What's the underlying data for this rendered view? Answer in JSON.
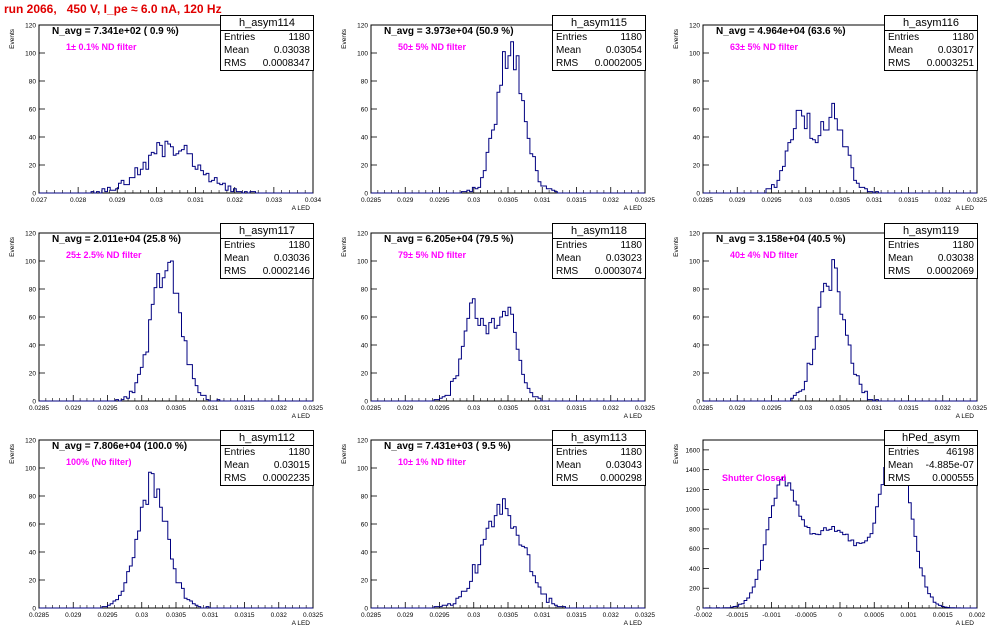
{
  "title": "run 2066,   450 V, I_pe ≈ 6.0 nA, 120 Hz",
  "colors": {
    "title": "#e00000",
    "histogram": "#000080",
    "note": "#ff00ff"
  },
  "chart_data": [
    {
      "type": "histogram",
      "name": "h_asym114",
      "navg": "N_avg = 7.341e+02 ( 0.9 %)",
      "note": "1± 0.1% ND filter",
      "stats": {
        "Entries": "1180",
        "Mean": "0.03038",
        "RMS": "0.0008347"
      },
      "xlabel": "A_{LED}",
      "ylabel": "Events",
      "xlim": [
        0.027,
        0.034
      ],
      "ylim": [
        0,
        120
      ],
      "xticks": [
        "0.027",
        "0.028",
        "0.029",
        "0.03",
        "0.031",
        "0.032",
        "0.033",
        "0.034"
      ],
      "yticks": [
        "0",
        "20",
        "40",
        "60",
        "80",
        "100",
        "120"
      ],
      "mean": 0.03038,
      "rms": 0.0008347,
      "peak": 33,
      "shape": "bimodal-wide"
    },
    {
      "type": "histogram",
      "name": "h_asym115",
      "navg": "N_avg = 3.973e+04 (50.9 %)",
      "note": "50± 5% ND filter",
      "stats": {
        "Entries": "1180",
        "Mean": "0.03054",
        "RMS": "0.0002005"
      },
      "xlabel": "A_{LED}",
      "ylabel": "Events",
      "xlim": [
        0.0285,
        0.0325
      ],
      "ylim": [
        0,
        120
      ],
      "xticks": [
        "0.0285",
        "0.029",
        "0.0295",
        "0.03",
        "0.0305",
        "0.031",
        "0.0315",
        "0.032",
        "0.0325"
      ],
      "yticks": [
        "0",
        "20",
        "40",
        "60",
        "80",
        "100",
        "120"
      ],
      "mean": 0.03054,
      "rms": 0.0002005,
      "peak": 102,
      "shape": "gaussian"
    },
    {
      "type": "histogram",
      "name": "h_asym116",
      "navg": "N_avg = 4.964e+04 (63.6 %)",
      "note": "63± 5% ND filter",
      "stats": {
        "Entries": "1180",
        "Mean": "0.03017",
        "RMS": "0.0003251"
      },
      "xlabel": "A_{LED}",
      "ylabel": "Events",
      "xlim": [
        0.0285,
        0.0325
      ],
      "ylim": [
        0,
        120
      ],
      "xticks": [
        "0.0285",
        "0.029",
        "0.0295",
        "0.03",
        "0.0305",
        "0.031",
        "0.0315",
        "0.032",
        "0.0325"
      ],
      "yticks": [
        "0",
        "20",
        "40",
        "60",
        "80",
        "100",
        "120"
      ],
      "mean": 0.03017,
      "rms": 0.0003251,
      "peak": 55,
      "shape": "bimodal"
    },
    {
      "type": "histogram",
      "name": "h_asym117",
      "navg": "N_avg = 2.011e+04 (25.8 %)",
      "note": "25± 2.5% ND filter",
      "stats": {
        "Entries": "1180",
        "Mean": "0.03036",
        "RMS": "0.0002146"
      },
      "xlabel": "A_{LED}",
      "ylabel": "Events",
      "xlim": [
        0.0285,
        0.0325
      ],
      "ylim": [
        0,
        120
      ],
      "xticks": [
        "0.0285",
        "0.029",
        "0.0295",
        "0.03",
        "0.0305",
        "0.031",
        "0.0315",
        "0.032",
        "0.0325"
      ],
      "yticks": [
        "0",
        "20",
        "40",
        "60",
        "80",
        "100",
        "120"
      ],
      "mean": 0.03036,
      "rms": 0.0002146,
      "peak": 97,
      "shape": "gaussian"
    },
    {
      "type": "histogram",
      "name": "h_asym118",
      "navg": "N_avg = 6.205e+04 (79.5 %)",
      "note": "79± 5% ND filter",
      "stats": {
        "Entries": "1180",
        "Mean": "0.03023",
        "RMS": "0.0003074"
      },
      "xlabel": "A_{LED}",
      "ylabel": "Events",
      "xlim": [
        0.0285,
        0.0325
      ],
      "ylim": [
        0,
        120
      ],
      "xticks": [
        "0.0285",
        "0.029",
        "0.0295",
        "0.03",
        "0.0305",
        "0.031",
        "0.0315",
        "0.032",
        "0.0325"
      ],
      "yticks": [
        "0",
        "20",
        "40",
        "60",
        "80",
        "100",
        "120"
      ],
      "mean": 0.03023,
      "rms": 0.0003074,
      "peak": 66,
      "shape": "bimodal"
    },
    {
      "type": "histogram",
      "name": "h_asym119",
      "navg": "N_avg = 3.158e+04 (40.5 %)",
      "note": "40± 4% ND filter",
      "stats": {
        "Entries": "1180",
        "Mean": "0.03038",
        "RMS": "0.0002069"
      },
      "xlabel": "A_{LED}",
      "ylabel": "Events",
      "xlim": [
        0.0285,
        0.0325
      ],
      "ylim": [
        0,
        120
      ],
      "xticks": [
        "0.0285",
        "0.029",
        "0.0295",
        "0.03",
        "0.0305",
        "0.031",
        "0.0315",
        "0.032",
        "0.0325"
      ],
      "yticks": [
        "0",
        "20",
        "40",
        "60",
        "80",
        "100",
        "120"
      ],
      "mean": 0.03038,
      "rms": 0.0002069,
      "peak": 90,
      "shape": "gaussian"
    },
    {
      "type": "histogram",
      "name": "h_asym112",
      "navg": "N_avg = 7.806e+04 (100.0 %)",
      "note": "100% (No filter)",
      "stats": {
        "Entries": "1180",
        "Mean": "0.03015",
        "RMS": "0.0002235"
      },
      "xlabel": "A_{LED}",
      "ylabel": "Events",
      "xlim": [
        0.0285,
        0.0325
      ],
      "ylim": [
        0,
        120
      ],
      "xticks": [
        "0.0285",
        "0.029",
        "0.0295",
        "0.03",
        "0.0305",
        "0.031",
        "0.0315",
        "0.032",
        "0.0325"
      ],
      "yticks": [
        "0",
        "20",
        "40",
        "60",
        "80",
        "100",
        "120"
      ],
      "mean": 0.03015,
      "rms": 0.0002235,
      "peak": 87,
      "shape": "gaussian"
    },
    {
      "type": "histogram",
      "name": "h_asym113",
      "navg": "N_avg = 7.431e+03 ( 9.5 %)",
      "note": "10± 1% ND filter",
      "stats": {
        "Entries": "1180",
        "Mean": "0.03043",
        "RMS": "0.000298"
      },
      "xlabel": "A_{LED}",
      "ylabel": "Events",
      "xlim": [
        0.0285,
        0.0325
      ],
      "ylim": [
        0,
        120
      ],
      "xticks": [
        "0.0285",
        "0.029",
        "0.0295",
        "0.03",
        "0.0305",
        "0.031",
        "0.0315",
        "0.032",
        "0.0325"
      ],
      "yticks": [
        "0",
        "20",
        "40",
        "60",
        "80",
        "100",
        "120"
      ],
      "mean": 0.03043,
      "rms": 0.000298,
      "peak": 72,
      "shape": "gaussian"
    },
    {
      "type": "histogram",
      "name": "hPed_asym",
      "navg": "",
      "note": "Shutter Closed",
      "stats": {
        "Entries": "46198",
        "Mean": "-4.885e-07",
        "RMS": "0.000555"
      },
      "xlabel": "A_{LED}",
      "ylabel": "Events",
      "xlim": [
        -0.002,
        0.002
      ],
      "ylim": [
        0,
        1700
      ],
      "xticks": [
        "-0.002",
        "-0.0015",
        "-0.001",
        "-0.0005",
        "0",
        "0.0005",
        "0.001",
        "0.0015",
        "0.002"
      ],
      "yticks": [
        "0",
        "200",
        "400",
        "600",
        "800",
        "1000",
        "1200",
        "1400",
        "1600"
      ],
      "mean": 0,
      "rms": 0.000555,
      "peak": 1680,
      "shape": "pedestal"
    }
  ]
}
